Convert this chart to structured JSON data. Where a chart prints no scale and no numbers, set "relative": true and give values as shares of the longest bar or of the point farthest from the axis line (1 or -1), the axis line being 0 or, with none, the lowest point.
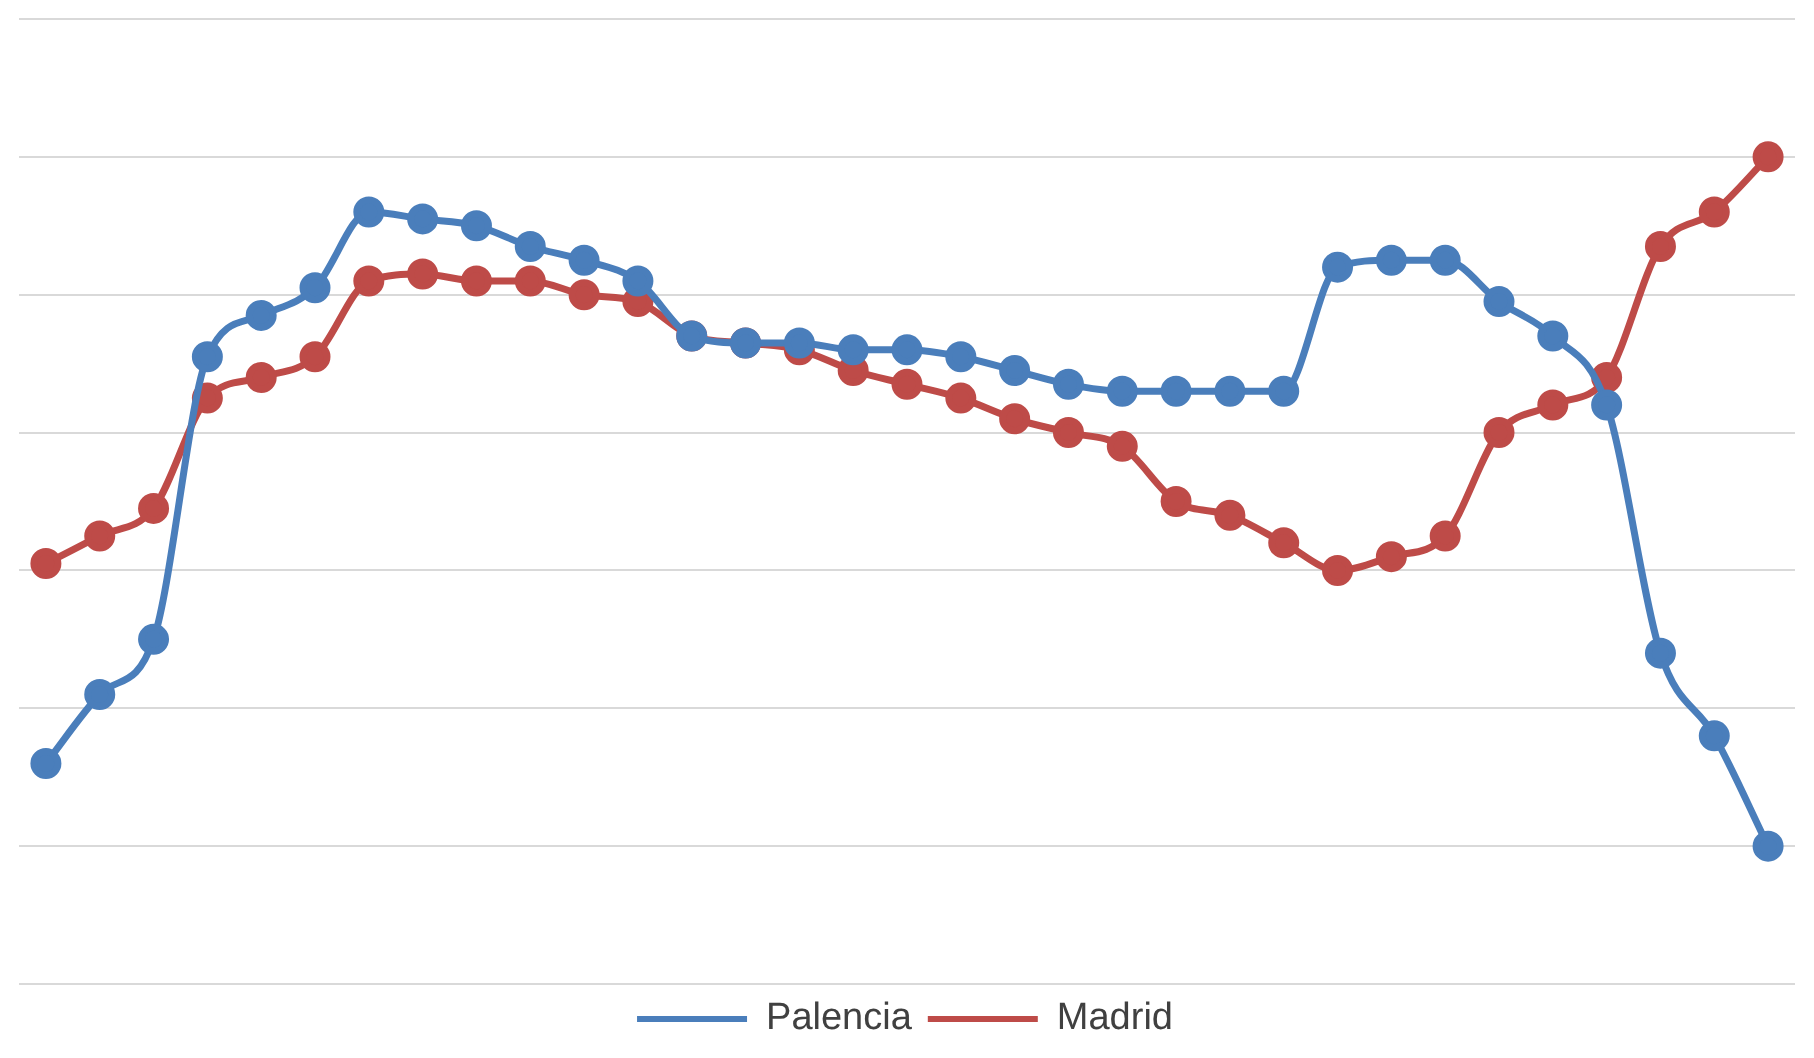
{
  "chart_data": {
    "type": "line",
    "relative": true,
    "categories": [
      null,
      null,
      null,
      null,
      null,
      null,
      null,
      null,
      null,
      null,
      null,
      null,
      null,
      null,
      null,
      null,
      null,
      null,
      null,
      null,
      null,
      null,
      null,
      null,
      null,
      null,
      null,
      null,
      null,
      null,
      null,
      null,
      null
    ],
    "series": [
      {
        "name": "Palencia",
        "color": "#4a7ebb",
        "values": [
          0.12,
          0.22,
          0.3,
          0.71,
          0.77,
          0.81,
          0.92,
          0.91,
          0.9,
          0.87,
          0.85,
          0.82,
          0.74,
          0.73,
          0.73,
          0.72,
          0.72,
          0.71,
          0.69,
          0.67,
          0.66,
          0.66,
          0.66,
          0.66,
          0.84,
          0.85,
          0.85,
          0.79,
          0.74,
          0.64,
          0.28,
          0.16,
          0
        ]
      },
      {
        "name": "Madrid",
        "color": "#be4b48",
        "values": [
          0.41,
          0.45,
          0.49,
          0.65,
          0.68,
          0.71,
          0.82,
          0.83,
          0.82,
          0.82,
          0.8,
          0.79,
          0.74,
          0.73,
          0.72,
          0.69,
          0.67,
          0.65,
          0.62,
          0.6,
          0.58,
          0.5,
          0.48,
          0.44,
          0.4,
          0.42,
          0.45,
          0.6,
          0.64,
          0.68,
          0.87,
          0.92,
          1
        ]
      }
    ],
    "grid": "y",
    "legend": "bottom",
    "marker": "circle",
    "line_style": "solid"
  }
}
